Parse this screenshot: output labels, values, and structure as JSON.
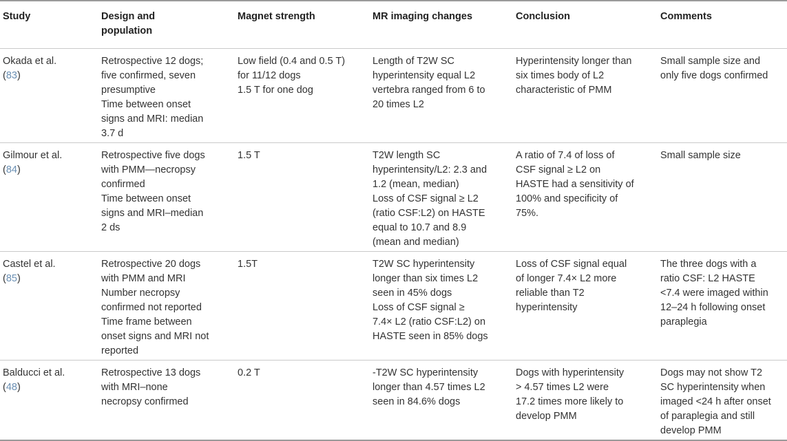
{
  "columns": [
    "Study",
    "Design and population",
    "Magnet strength",
    "MR imaging changes",
    "Conclusion",
    "Comments"
  ],
  "rows": [
    {
      "study": {
        "authors": "Okada et al.",
        "ref_open": "(",
        "ref": "83",
        "ref_close": ")"
      },
      "cells": [
        [
          "Retrospective 12 dogs;",
          "five confirmed, seven",
          "presumptive",
          "Time between onset",
          "signs and MRI: median",
          "3.7 d"
        ],
        [
          "Low field (0.4 and 0.5 T)",
          "for 11/12 dogs",
          "1.5 T for one dog"
        ],
        [
          "Length of T2W SC",
          "hyperintensity equal L2",
          "vertebra ranged from 6 to",
          "20 times L2"
        ],
        [
          "Hyperintensity longer than",
          "six times body of L2",
          "characteristic of PMM"
        ],
        [
          "Small sample size and",
          "only five dogs confirmed"
        ]
      ]
    },
    {
      "study": {
        "authors": "Gilmour et al.",
        "ref_open": "(",
        "ref": "84",
        "ref_close": ")"
      },
      "cells": [
        [
          "Retrospective five dogs",
          "with PMM—necropsy",
          "confirmed",
          "Time between onset",
          "signs and MRI–median",
          "2 ds"
        ],
        [
          "1.5 T"
        ],
        [
          "T2W length SC",
          "hyperintensity/L2: 2.3 and",
          "1.2 (mean, median)",
          "Loss of CSF signal ≥ L2",
          "(ratio CSF:L2) on HASTE",
          "equal to 10.7 and 8.9",
          "(mean and median)"
        ],
        [
          "A ratio of 7.4 of loss of",
          "CSF signal ≥ L2 on",
          "HASTE had a sensitivity of",
          "100% and specificity of",
          "75%."
        ],
        [
          "Small sample size"
        ]
      ]
    },
    {
      "study": {
        "authors": "Castel et al.",
        "ref_open": "(",
        "ref": "85",
        "ref_close": ")"
      },
      "cells": [
        [
          "Retrospective 20 dogs",
          "with PMM and MRI",
          "Number necropsy",
          "confirmed not reported",
          "Time frame between",
          "onset signs and MRI not",
          "reported"
        ],
        [
          "1.5T"
        ],
        [
          "T2W SC hyperintensity",
          "longer than six times L2",
          "seen in 45% dogs",
          "Loss of CSF signal ≥",
          "7.4× L2 (ratio CSF:L2) on",
          "HASTE seen in 85% dogs"
        ],
        [
          "Loss of CSF signal equal",
          "of longer 7.4× L2 more",
          "reliable than T2",
          "hyperintensity"
        ],
        [
          "The three dogs with a",
          "ratio CSF: L2 HASTE",
          "<7.4 were imaged within",
          "12–24 h following onset",
          "paraplegia"
        ]
      ]
    },
    {
      "study": {
        "authors": "Balducci et al.",
        "ref_open": "(",
        "ref": "48",
        "ref_close": ")"
      },
      "cells": [
        [
          "Retrospective 13 dogs",
          "with MRI–none",
          "necropsy confirmed"
        ],
        [
          "0.2 T"
        ],
        [
          "-T2W SC hyperintensity",
          "longer than 4.57 times L2",
          "seen in 84.6% dogs"
        ],
        [
          "Dogs with hyperintensity",
          "> 4.57 times L2 were",
          "17.2 times more likely to",
          "develop PMM"
        ],
        [
          "Dogs may not show T2",
          "SC hyperintensity when",
          "imaged <24 h after onset",
          "of paraplegia and still",
          "develop PMM"
        ]
      ]
    }
  ]
}
